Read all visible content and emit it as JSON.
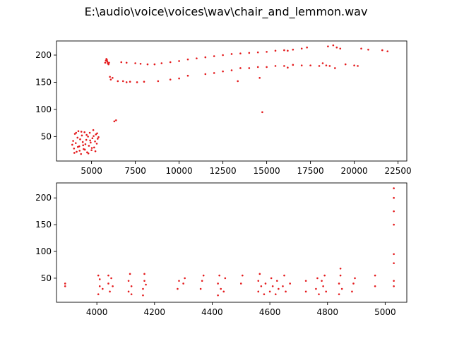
{
  "figure": {
    "title": "E:\\audio\\voice\\voices\\wav\\chair_and_lemmon.wav"
  },
  "chart_data": [
    {
      "type": "scatter",
      "title": "",
      "xlabel": "",
      "ylabel": "",
      "xlim": [
        3000,
        23000
      ],
      "ylim": [
        5,
        226
      ],
      "xticks": [
        5000,
        7500,
        10000,
        12500,
        15000,
        17500,
        20000,
        22500
      ],
      "xtick_labels": [
        "5000",
        "7500",
        "10000",
        "12500",
        "15000",
        "17500",
        "20000",
        "22500"
      ],
      "yticks": [
        50,
        100,
        150,
        200
      ],
      "ytick_labels": [
        "50",
        "100",
        "150",
        "200"
      ],
      "grid": false,
      "color": "#e41a1c",
      "series": [
        {
          "values": [
            [
              3900,
              35
            ],
            [
              3950,
              42
            ],
            [
              4000,
              28
            ],
            [
              4050,
              55
            ],
            [
              4100,
              38
            ],
            [
              4150,
              22
            ],
            [
              4200,
              48
            ],
            [
              4250,
              60
            ],
            [
              4300,
              32
            ],
            [
              4350,
              45
            ],
            [
              4400,
              18
            ],
            [
              4450,
              52
            ],
            [
              4500,
              40
            ],
            [
              4550,
              27
            ],
            [
              4600,
              58
            ],
            [
              4650,
              36
            ],
            [
              4700,
              44
            ],
            [
              4750,
              21
            ],
            [
              4800,
              50
            ],
            [
              4850,
              33
            ],
            [
              4900,
              57
            ],
            [
              4950,
              39
            ],
            [
              5000,
              25
            ],
            [
              5050,
              47
            ],
            [
              5100,
              62
            ],
            [
              5150,
              30
            ],
            [
              5200,
              41
            ],
            [
              5250,
              54
            ],
            [
              5300,
              37
            ],
            [
              5350,
              46
            ],
            [
              5400,
              49
            ],
            [
              4020,
              20
            ],
            [
              4120,
              57
            ],
            [
              4220,
              31
            ],
            [
              4320,
              24
            ],
            [
              4420,
              59
            ],
            [
              4520,
              34
            ],
            [
              4620,
              26
            ],
            [
              4720,
              53
            ],
            [
              4820,
              19
            ],
            [
              4920,
              43
            ],
            [
              5020,
              29
            ],
            [
              5120,
              51
            ],
            [
              5220,
              23
            ],
            [
              5320,
              56
            ],
            [
              5780,
              186
            ],
            [
              5820,
              190
            ],
            [
              5850,
              193
            ],
            [
              5880,
              191
            ],
            [
              5900,
              188
            ],
            [
              5930,
              185
            ],
            [
              5970,
              183
            ],
            [
              6000,
              186
            ],
            [
              6050,
              160
            ],
            [
              6100,
              155
            ],
            [
              6200,
              158
            ],
            [
              6500,
              152
            ],
            [
              6800,
              152
            ],
            [
              7000,
              150
            ],
            [
              7200,
              151
            ],
            [
              7600,
              150
            ],
            [
              8000,
              151
            ],
            [
              6300,
              78
            ],
            [
              6400,
              80
            ],
            [
              6700,
              187
            ],
            [
              7000,
              186
            ],
            [
              7500,
              185
            ],
            [
              7800,
              184
            ],
            [
              8200,
              183
            ],
            [
              8600,
              183
            ],
            [
              9000,
              185
            ],
            [
              9500,
              187
            ],
            [
              10000,
              189
            ],
            [
              10500,
              192
            ],
            [
              11000,
              194
            ],
            [
              11500,
              196
            ],
            [
              12000,
              198
            ],
            [
              12500,
              200
            ],
            [
              13000,
              202
            ],
            [
              13500,
              203
            ],
            [
              14000,
              204
            ],
            [
              14500,
              205
            ],
            [
              15000,
              206
            ],
            [
              15500,
              208
            ],
            [
              16000,
              209
            ],
            [
              16500,
              210
            ],
            [
              17000,
              212
            ],
            [
              17300,
              214
            ],
            [
              8800,
              152
            ],
            [
              9500,
              155
            ],
            [
              10000,
              157
            ],
            [
              10500,
              162
            ],
            [
              11500,
              165
            ],
            [
              12000,
              167
            ],
            [
              12500,
              170
            ],
            [
              13000,
              172
            ],
            [
              13500,
              176
            ],
            [
              14000,
              176
            ],
            [
              14500,
              178
            ],
            [
              15000,
              178
            ],
            [
              15500,
              180
            ],
            [
              16000,
              180
            ],
            [
              16500,
              182
            ],
            [
              17000,
              181
            ],
            [
              17500,
              181
            ],
            [
              18000,
              180
            ],
            [
              13350,
              152
            ],
            [
              14600,
              158
            ],
            [
              14750,
              95
            ],
            [
              16200,
              177
            ],
            [
              18200,
              185
            ],
            [
              18400,
              181
            ],
            [
              18600,
              180
            ],
            [
              18900,
              176
            ],
            [
              19500,
              183
            ],
            [
              20000,
              181
            ],
            [
              20200,
              180
            ],
            [
              18500,
              216
            ],
            [
              18800,
              218
            ],
            [
              19000,
              214
            ],
            [
              19200,
              212
            ],
            [
              16200,
              208
            ],
            [
              20400,
              212
            ],
            [
              20800,
              210
            ],
            [
              21600,
              209
            ],
            [
              21900,
              207
            ]
          ]
        }
      ]
    },
    {
      "type": "scatter",
      "title": "",
      "xlabel": "",
      "ylabel": "",
      "xlim": [
        3860,
        5075
      ],
      "ylim": [
        5,
        228
      ],
      "xticks": [
        4000,
        4200,
        4400,
        4600,
        4800,
        5000
      ],
      "xtick_labels": [
        "4000",
        "4200",
        "4400",
        "4600",
        "4800",
        "5000"
      ],
      "yticks": [
        50,
        100,
        150,
        200
      ],
      "ytick_labels": [
        "50",
        "100",
        "150",
        "200"
      ],
      "grid": false,
      "color": "#e41a1c",
      "series": [
        {
          "values": [
            [
              3890,
              35
            ],
            [
              3890,
              40
            ],
            [
              4005,
              20
            ],
            [
              4005,
              55
            ],
            [
              4010,
              35
            ],
            [
              4010,
              48
            ],
            [
              4020,
              30
            ],
            [
              4040,
              40
            ],
            [
              4040,
              55
            ],
            [
              4045,
              25
            ],
            [
              4050,
              50
            ],
            [
              4055,
              35
            ],
            [
              4110,
              25
            ],
            [
              4110,
              45
            ],
            [
              4115,
              58
            ],
            [
              4120,
              35
            ],
            [
              4120,
              20
            ],
            [
              4160,
              18
            ],
            [
              4160,
              30
            ],
            [
              4165,
              45
            ],
            [
              4165,
              58
            ],
            [
              4170,
              38
            ],
            [
              4280,
              30
            ],
            [
              4285,
              45
            ],
            [
              4300,
              40
            ],
            [
              4305,
              50
            ],
            [
              4360,
              30
            ],
            [
              4365,
              45
            ],
            [
              4370,
              55
            ],
            [
              4420,
              18
            ],
            [
              4420,
              40
            ],
            [
              4425,
              55
            ],
            [
              4430,
              30
            ],
            [
              4440,
              25
            ],
            [
              4445,
              50
            ],
            [
              4500,
              40
            ],
            [
              4505,
              55
            ],
            [
              4560,
              25
            ],
            [
              4560,
              45
            ],
            [
              4565,
              58
            ],
            [
              4570,
              35
            ],
            [
              4580,
              20
            ],
            [
              4585,
              40
            ],
            [
              4600,
              25
            ],
            [
              4605,
              50
            ],
            [
              4610,
              35
            ],
            [
              4620,
              20
            ],
            [
              4625,
              45
            ],
            [
              4630,
              30
            ],
            [
              4645,
              35
            ],
            [
              4650,
              55
            ],
            [
              4655,
              25
            ],
            [
              4670,
              40
            ],
            [
              4725,
              25
            ],
            [
              4725,
              45
            ],
            [
              4760,
              30
            ],
            [
              4765,
              50
            ],
            [
              4770,
              20
            ],
            [
              4780,
              45
            ],
            [
              4785,
              35
            ],
            [
              4790,
              55
            ],
            [
              4795,
              25
            ],
            [
              4840,
              20
            ],
            [
              4840,
              40
            ],
            [
              4845,
              55
            ],
            [
              4845,
              68
            ],
            [
              4850,
              30
            ],
            [
              4885,
              25
            ],
            [
              4890,
              40
            ],
            [
              4895,
              50
            ],
            [
              4965,
              35
            ],
            [
              4965,
              55
            ],
            [
              5030,
              35
            ],
            [
              5030,
              45
            ],
            [
              5030,
              78
            ],
            [
              5030,
              95
            ],
            [
              5030,
              150
            ],
            [
              5030,
              175
            ],
            [
              5030,
              200
            ],
            [
              5030,
              218
            ]
          ]
        }
      ]
    }
  ]
}
